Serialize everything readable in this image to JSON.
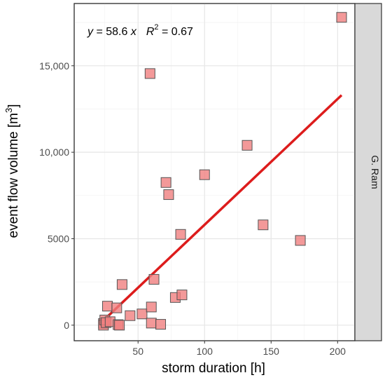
{
  "chart_data": {
    "type": "scatter",
    "panel_label": "G. Ram",
    "xlabel": "storm duration [h]",
    "ylabel": "event flow volume [m",
    "ylabel_superscript": "3",
    "ylabel_close": "]",
    "xlim": [
      2,
      213
    ],
    "ylim": [
      -900,
      18600
    ],
    "x_ticks": [
      50,
      100,
      150,
      200
    ],
    "x_tick_labels": [
      "50",
      "100",
      "150",
      "200"
    ],
    "y_ticks": [
      0,
      5000,
      10000,
      15000
    ],
    "y_tick_labels": [
      "0",
      "5000",
      "10,000",
      "15,000"
    ],
    "grid": true,
    "annotation": {
      "y_var": "y",
      "equals": " = 58.6 ",
      "x_var": "x",
      "r_label": "R",
      "r_exp": "2",
      "r_value": " = 0.67"
    },
    "series": [
      {
        "marker": "square",
        "color": "#f08080",
        "points": [
          {
            "x": 24,
            "y": 100
          },
          {
            "x": 24,
            "y": 0
          },
          {
            "x": 25,
            "y": 300
          },
          {
            "x": 26,
            "y": 150
          },
          {
            "x": 27,
            "y": 1100
          },
          {
            "x": 29,
            "y": 200
          },
          {
            "x": 34,
            "y": 1000
          },
          {
            "x": 35,
            "y": 30
          },
          {
            "x": 36,
            "y": 0
          },
          {
            "x": 38,
            "y": 2350
          },
          {
            "x": 44,
            "y": 550
          },
          {
            "x": 53,
            "y": 650
          },
          {
            "x": 59,
            "y": 14550
          },
          {
            "x": 60,
            "y": 1050
          },
          {
            "x": 60,
            "y": 120
          },
          {
            "x": 62,
            "y": 2650
          },
          {
            "x": 67,
            "y": 50
          },
          {
            "x": 71,
            "y": 8250
          },
          {
            "x": 73,
            "y": 7550
          },
          {
            "x": 78,
            "y": 1600
          },
          {
            "x": 82,
            "y": 5250
          },
          {
            "x": 83,
            "y": 1750
          },
          {
            "x": 100,
            "y": 8700
          },
          {
            "x": 132,
            "y": 10400
          },
          {
            "x": 144,
            "y": 5800
          },
          {
            "x": 172,
            "y": 4900
          },
          {
            "x": 203,
            "y": 17800
          }
        ]
      }
    ],
    "fit_line": {
      "color": "#dd1c1c",
      "x": [
        25,
        203
      ],
      "y": [
        350,
        13300
      ]
    }
  }
}
